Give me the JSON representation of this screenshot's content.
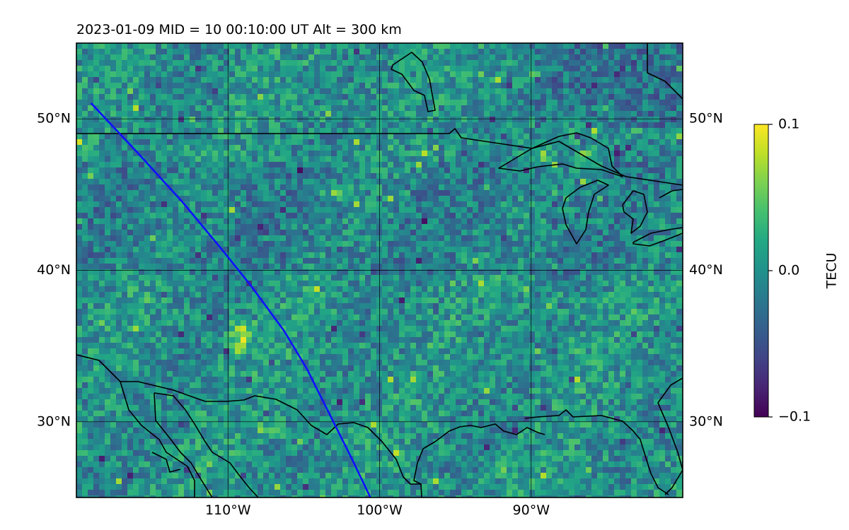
{
  "title": "2023-01-09  MID =  10    00:10:00  UT  Alt = 300 km",
  "map": {
    "lon_range": [
      -120,
      -80
    ],
    "lat_range": [
      25,
      55
    ],
    "lat_ticks": [
      {
        "value": 30,
        "label": "30°N"
      },
      {
        "value": 40,
        "label": "40°N"
      },
      {
        "value": 50,
        "label": "50°N"
      }
    ],
    "lon_ticks": [
      {
        "value": -110,
        "label": "110°W"
      },
      {
        "value": -100,
        "label": "100°W"
      },
      {
        "value": -90,
        "label": "90°W"
      }
    ],
    "grid": true,
    "field": "TEC perturbation",
    "colormap": "viridis",
    "track_color": "#1010ff",
    "track": [
      [
        -119,
        51
      ],
      [
        -116,
        47.8
      ],
      [
        -113,
        44.5
      ],
      [
        -110.5,
        41.5
      ],
      [
        -108.5,
        39
      ],
      [
        -106.3,
        36
      ],
      [
        -104.8,
        33.5
      ],
      [
        -103.3,
        30.5
      ],
      [
        -101.8,
        27.5
      ],
      [
        -100.6,
        25
      ]
    ]
  },
  "colorbar": {
    "label": "TECU",
    "min": -0.1,
    "max": 0.1,
    "ticks": [
      {
        "value": 0.1,
        "label": "0.1"
      },
      {
        "value": 0.0,
        "label": "0.0"
      },
      {
        "value": -0.1,
        "label": "−0.1"
      }
    ]
  }
}
